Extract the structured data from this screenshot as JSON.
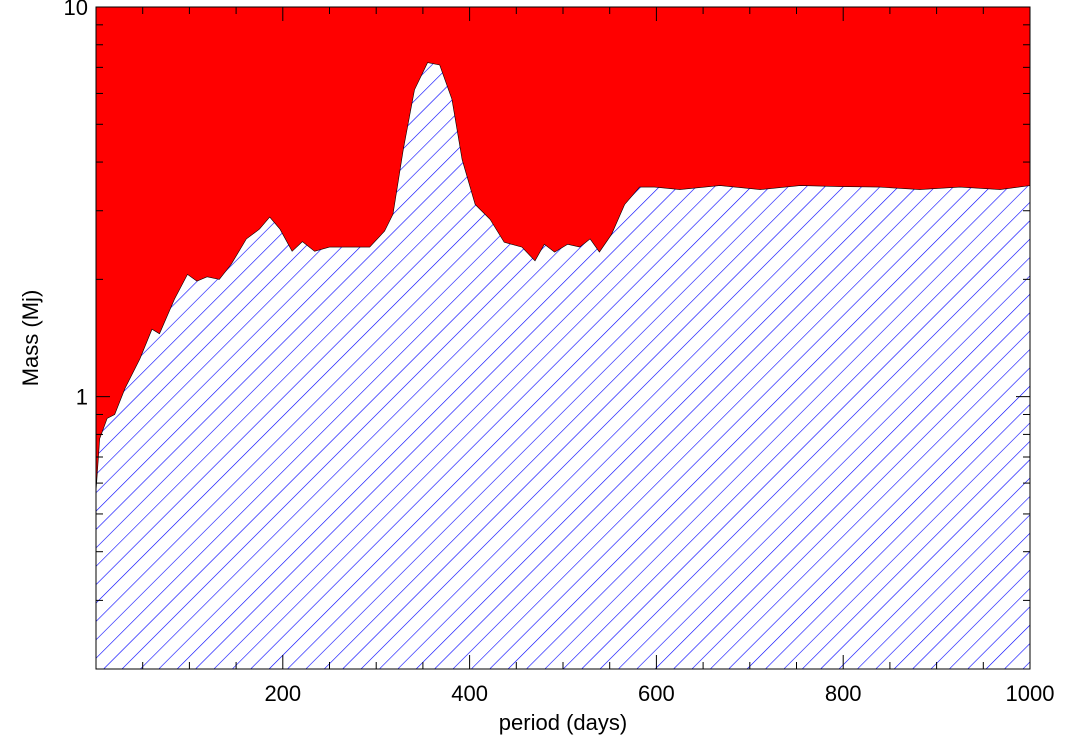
{
  "chart_data": {
    "type": "area",
    "x_label": "period (days)",
    "y_label": "Mass (Mj)",
    "x": [
      0,
      4,
      12,
      20,
      31,
      47,
      60,
      68,
      84,
      98,
      108,
      119,
      132,
      145,
      161,
      175,
      186,
      197,
      210,
      221,
      234,
      250,
      271,
      293,
      309,
      318,
      329,
      341,
      355,
      368,
      381,
      392,
      406,
      422,
      437,
      456,
      470,
      480,
      491,
      505,
      518,
      529,
      539,
      552,
      566,
      582,
      598,
      625,
      668,
      711,
      754,
      796,
      839,
      882,
      925,
      968,
      1000
    ],
    "series": [
      {
        "color": "#0000ff",
        "above_color": "#ff0000",
        "values": [
          0.57,
          0.78,
          0.88,
          0.9,
          1.05,
          1.25,
          1.49,
          1.45,
          1.78,
          2.06,
          1.98,
          2.03,
          2.0,
          2.19,
          2.54,
          2.69,
          2.89,
          2.69,
          2.36,
          2.5,
          2.36,
          2.42,
          2.42,
          2.42,
          2.66,
          2.94,
          4.31,
          6.13,
          7.2,
          7.1,
          5.8,
          4.06,
          3.11,
          2.85,
          2.49,
          2.42,
          2.23,
          2.46,
          2.35,
          2.46,
          2.42,
          2.54,
          2.35,
          2.61,
          3.11,
          3.45,
          3.45,
          3.4,
          3.48,
          3.4,
          3.48,
          3.46,
          3.45,
          3.4,
          3.45,
          3.4,
          3.48
        ]
      }
    ],
    "xlim": [
      0,
      1000
    ],
    "xticks": [
      200,
      400,
      600,
      800,
      1000
    ],
    "xminorticks": [
      50,
      100,
      150,
      250,
      300,
      350,
      450,
      500,
      550,
      650,
      700,
      750,
      850,
      900,
      950
    ],
    "ylim": [
      0.2,
      10
    ],
    "yticks": [
      1,
      10
    ],
    "yminorticks": [
      0.3,
      0.4,
      0.5,
      0.6,
      0.7,
      0.8,
      0.9,
      2,
      3,
      4,
      5,
      6,
      7,
      8,
      9
    ],
    "ylog": true
  }
}
